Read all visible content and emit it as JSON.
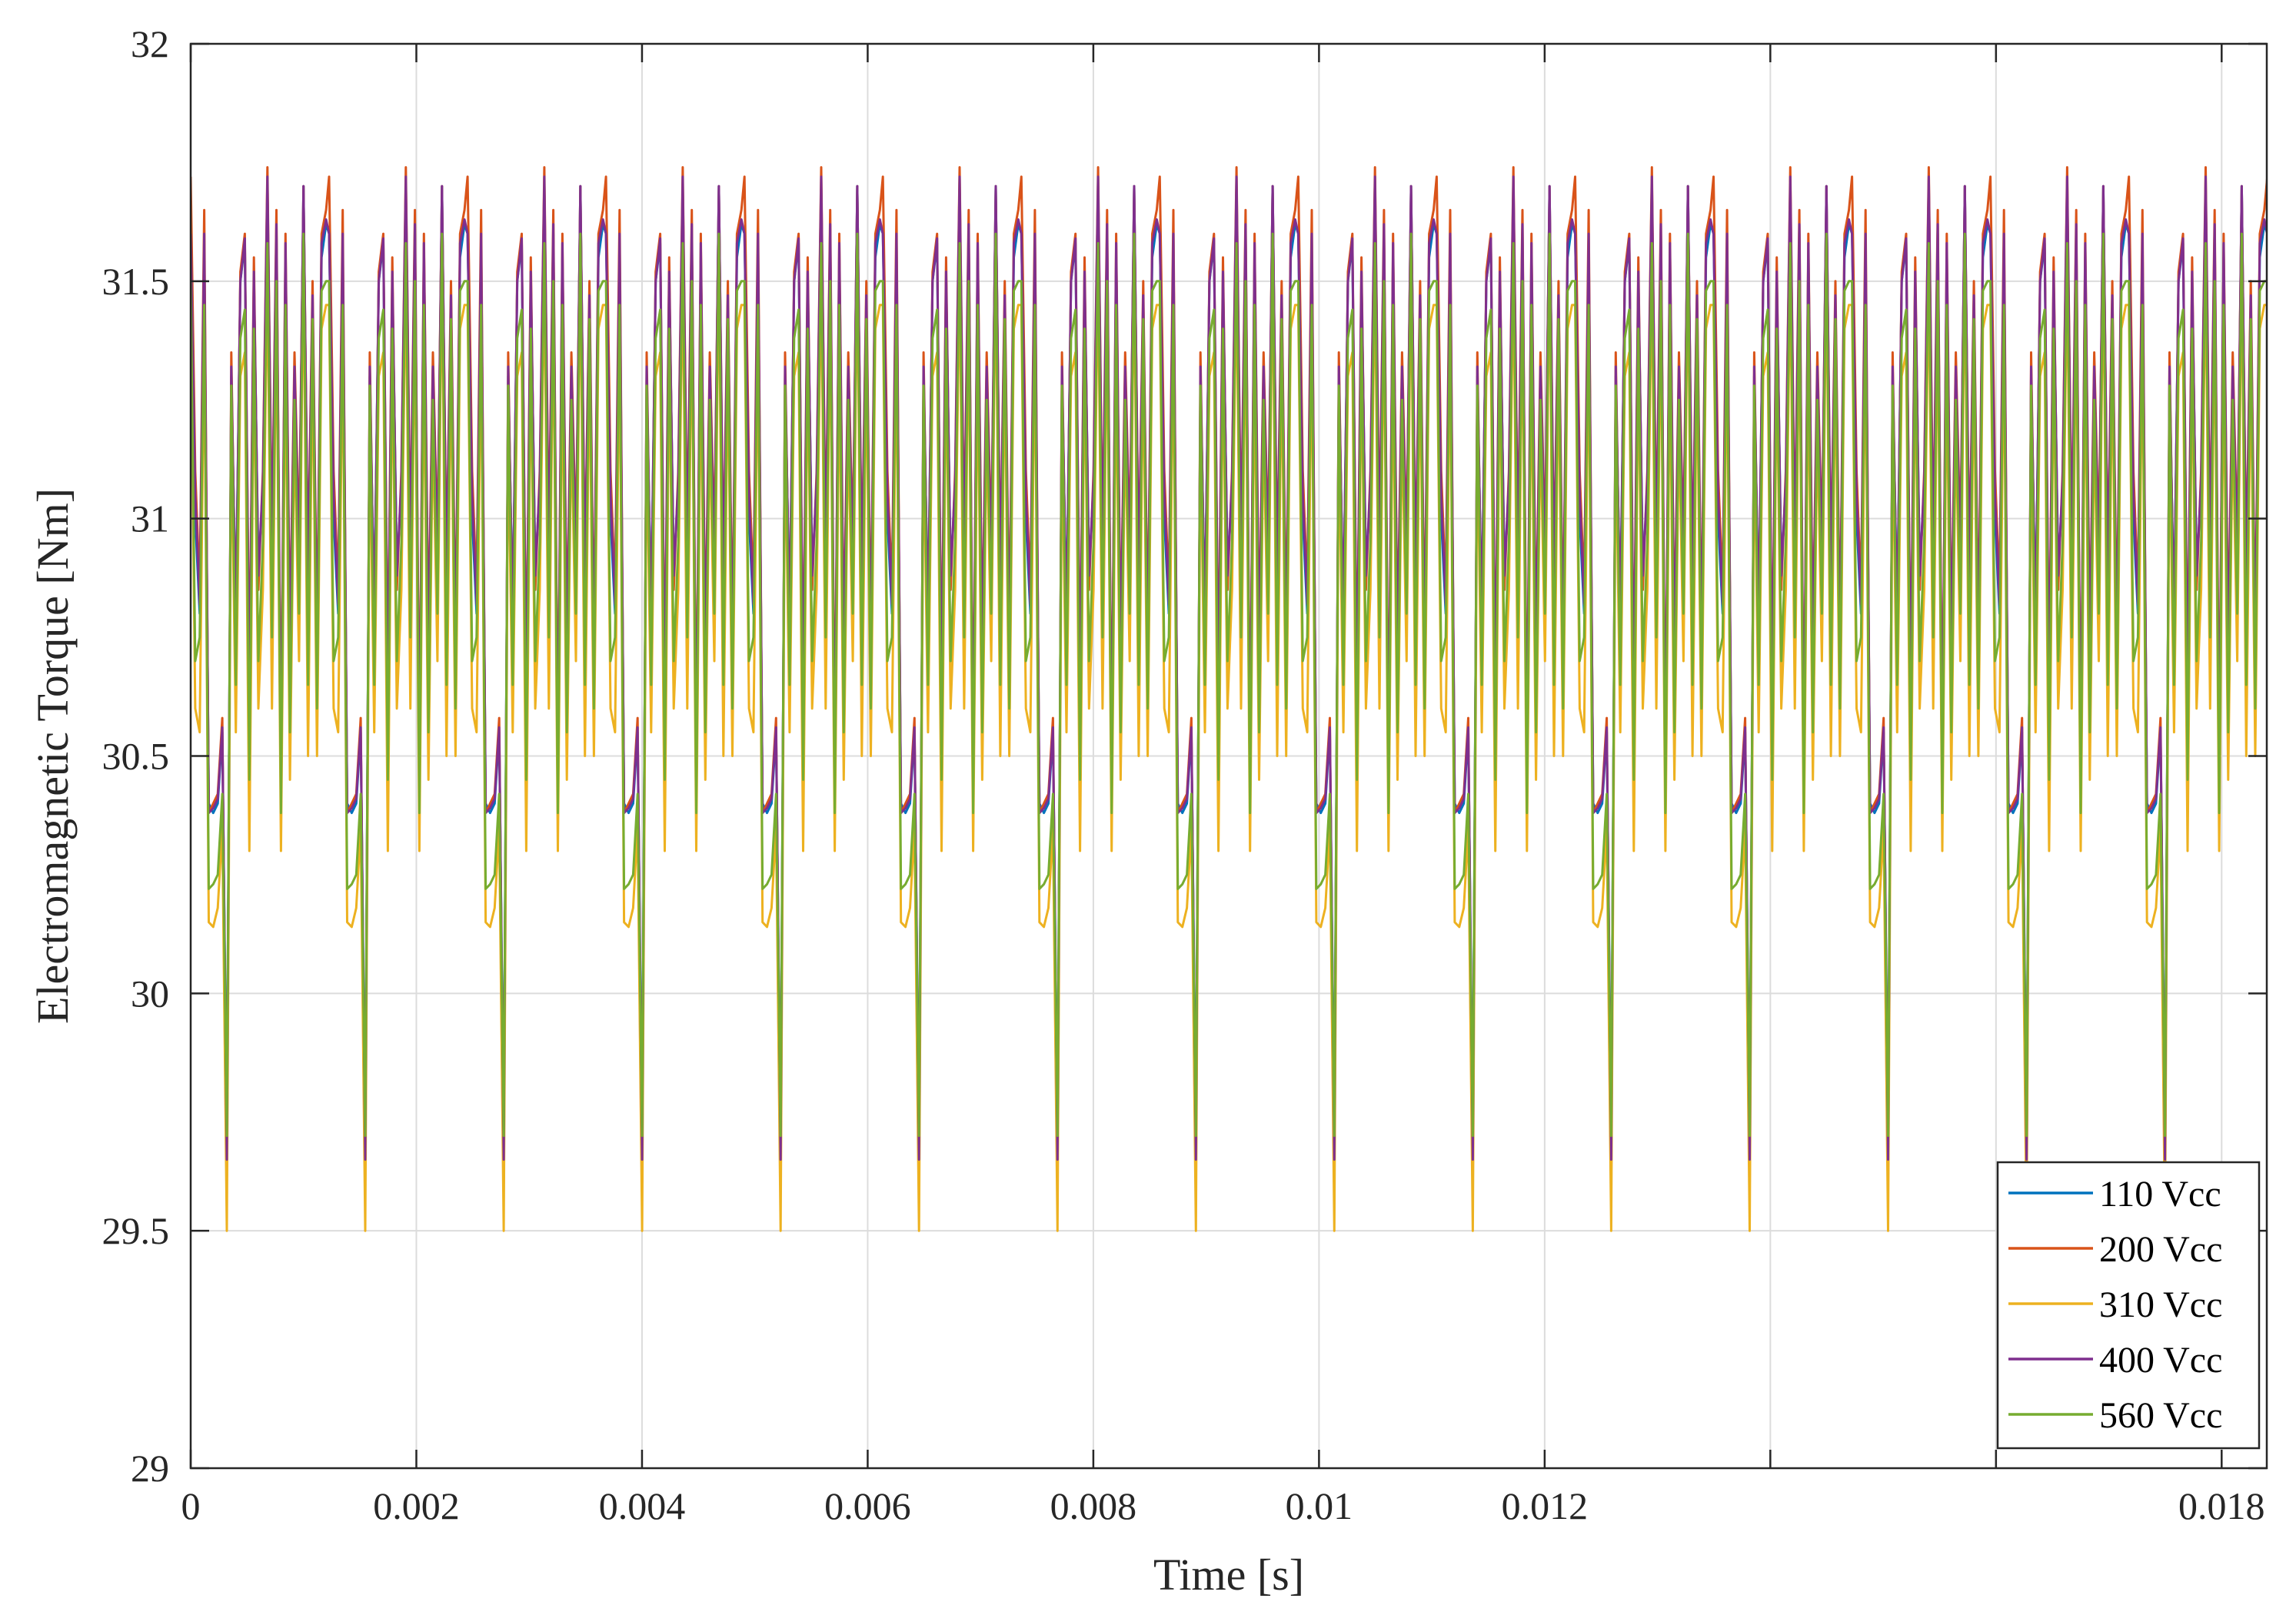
{
  "chart_data": {
    "type": "line",
    "title": "",
    "xlabel": "Time [s]",
    "ylabel": "Electromagnetic Torque [Nm]",
    "xlim": [
      0,
      0.0184
    ],
    "ylim": [
      29,
      32
    ],
    "xticks": [
      0,
      0.002,
      0.004,
      0.006,
      0.008,
      0.01,
      0.012,
      0.018
    ],
    "xtick_labels": [
      "0",
      "0.002",
      "0.004",
      "0.006",
      "0.008",
      "0.01",
      "0.012",
      "0.018"
    ],
    "xtick_positions_all": [
      0,
      0.002,
      0.004,
      0.006,
      0.008,
      0.01,
      0.012,
      0.014,
      0.016,
      0.018
    ],
    "yticks": [
      29,
      29.5,
      30,
      30.5,
      31,
      31.5,
      32
    ],
    "ytick_labels": [
      "29",
      "29.5",
      "30",
      "30.5",
      "31",
      "31.5",
      "32"
    ],
    "grid": true,
    "legend_position": "bottom-right",
    "series": [
      {
        "name": "110 Vcc",
        "color": "#0072BD",
        "pattern": {
          "period": 0.001227,
          "x_offsets": [
            0,
            4e-05,
            8e-05,
            0.00012,
            0.00016,
            0.0002,
            0.00024,
            0.00028,
            0.00032,
            0.00036,
            0.0004,
            0.00044,
            0.00048,
            0.00052,
            0.00056,
            0.0006,
            0.00064,
            0.00068,
            0.00072,
            0.00076,
            0.0008,
            0.00084,
            0.00088,
            0.00092,
            0.00096,
            0.001,
            0.00104,
            0.00108,
            0.00112,
            0.00116,
            0.0012
          ],
          "values": [
            31.6,
            31.0,
            30.8,
            31.55,
            30.4,
            30.38,
            30.4,
            30.55,
            29.7,
            31.3,
            30.8,
            31.5,
            31.58,
            30.6,
            31.5,
            30.9,
            31.05,
            31.7,
            30.9,
            31.6,
            30.45,
            31.55,
            30.7,
            31.3,
            30.9,
            31.7,
            30.85,
            31.45,
            30.7,
            31.55,
            31.62
          ]
        }
      },
      {
        "name": "200 Vcc",
        "color": "#D95319",
        "pattern": {
          "period": 0.001227,
          "x_offsets": [
            0,
            4e-05,
            8e-05,
            0.00012,
            0.00016,
            0.0002,
            0.00024,
            0.00028,
            0.00032,
            0.00036,
            0.0004,
            0.00044,
            0.00048,
            0.00052,
            0.00056,
            0.0006,
            0.00064,
            0.00068,
            0.00072,
            0.00076,
            0.0008,
            0.00084,
            0.00088,
            0.00092,
            0.00096,
            0.001,
            0.00104,
            0.00108,
            0.00112,
            0.00116,
            0.0012
          ],
          "values": [
            31.72,
            31.1,
            30.85,
            31.65,
            30.38,
            30.4,
            30.42,
            30.58,
            29.6,
            31.35,
            30.75,
            31.52,
            31.6,
            30.65,
            31.55,
            30.85,
            31.1,
            31.74,
            30.95,
            31.65,
            30.5,
            31.6,
            30.75,
            31.35,
            30.95,
            31.7,
            30.9,
            31.5,
            30.75,
            31.6,
            31.65
          ]
        }
      },
      {
        "name": "310 Vcc",
        "color": "#EDB120",
        "pattern": {
          "period": 0.001227,
          "x_offsets": [
            0,
            4e-05,
            8e-05,
            0.00012,
            0.00016,
            0.0002,
            0.00024,
            0.00028,
            0.00032,
            0.00036,
            0.0004,
            0.00044,
            0.00048,
            0.00052,
            0.00056,
            0.0006,
            0.00064,
            0.00068,
            0.00072,
            0.00076,
            0.0008,
            0.00084,
            0.00088,
            0.00092,
            0.00096,
            0.001,
            0.00104,
            0.00108,
            0.00112,
            0.00116,
            0.0012
          ],
          "values": [
            31.45,
            30.6,
            30.55,
            31.4,
            30.15,
            30.14,
            30.18,
            30.35,
            29.5,
            31.2,
            30.55,
            31.3,
            31.35,
            30.3,
            31.35,
            30.6,
            30.85,
            31.52,
            30.6,
            31.45,
            30.3,
            31.35,
            30.45,
            31.2,
            30.7,
            31.55,
            30.5,
            31.35,
            30.5,
            31.4,
            31.45
          ]
        }
      },
      {
        "name": "400 Vcc",
        "color": "#7E2F8E",
        "pattern": {
          "period": 0.001227,
          "x_offsets": [
            0,
            4e-05,
            8e-05,
            0.00012,
            0.00016,
            0.0002,
            0.00024,
            0.00028,
            0.00032,
            0.00036,
            0.0004,
            0.00044,
            0.00048,
            0.00052,
            0.00056,
            0.0006,
            0.00064,
            0.00068,
            0.00072,
            0.00076,
            0.0008,
            0.00084,
            0.00088,
            0.00092,
            0.00096,
            0.001,
            0.00104,
            0.00108,
            0.00112,
            0.00116,
            0.0012
          ],
          "values": [
            31.6,
            31.05,
            30.82,
            31.6,
            30.38,
            30.39,
            30.41,
            30.56,
            29.65,
            31.32,
            30.78,
            31.5,
            31.59,
            30.62,
            31.52,
            30.88,
            31.08,
            31.72,
            30.92,
            31.62,
            30.47,
            31.58,
            30.72,
            31.32,
            30.92,
            31.7,
            30.88,
            31.47,
            30.72,
            31.58,
            31.63
          ]
        }
      },
      {
        "name": "560 Vcc",
        "color": "#77AC30",
        "pattern": {
          "period": 0.001227,
          "x_offsets": [
            0,
            4e-05,
            8e-05,
            0.00012,
            0.00016,
            0.0002,
            0.00024,
            0.00028,
            0.00032,
            0.00036,
            0.0004,
            0.00044,
            0.00048,
            0.00052,
            0.00056,
            0.0006,
            0.00064,
            0.00068,
            0.00072,
            0.00076,
            0.0008,
            0.00084,
            0.00088,
            0.00092,
            0.00096,
            0.001,
            0.00104,
            0.00108,
            0.00112,
            0.00116,
            0.0012
          ],
          "values": [
            31.5,
            30.7,
            30.75,
            31.45,
            30.22,
            30.23,
            30.25,
            30.42,
            29.7,
            31.28,
            30.65,
            31.38,
            31.44,
            30.45,
            31.4,
            30.7,
            30.95,
            31.58,
            30.75,
            31.5,
            30.38,
            31.45,
            30.55,
            31.25,
            30.8,
            31.6,
            30.65,
            31.42,
            30.6,
            31.48,
            31.5
          ]
        }
      }
    ]
  }
}
